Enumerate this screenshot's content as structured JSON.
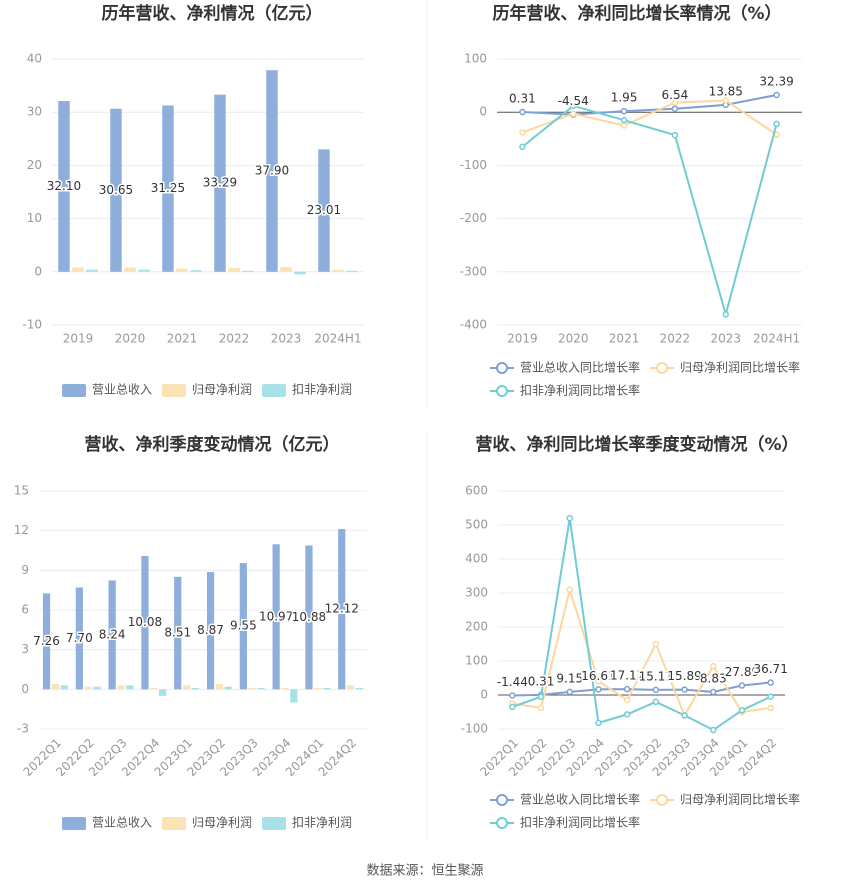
{
  "chart_data": [
    {
      "type": "bar",
      "title": "历年营收、净利情况（亿元）",
      "categories": [
        "2019",
        "2020",
        "2021",
        "2022",
        "2023",
        "2024H1"
      ],
      "series": [
        {
          "name": "营业总收入",
          "color": "#8eaedc",
          "values": [
            32.1,
            30.65,
            31.25,
            33.29,
            37.9,
            23.01
          ],
          "value_labels": [
            "32.10",
            "30.65",
            "31.25",
            "33.29",
            "37.90",
            "23.01"
          ]
        },
        {
          "name": "归母净利润",
          "color": "#fbe3b6",
          "values": [
            0.8,
            0.8,
            0.6,
            0.7,
            0.9,
            0.4
          ]
        },
        {
          "name": "扣非净利润",
          "color": "#a8e2e8",
          "values": [
            0.4,
            0.4,
            0.3,
            0.2,
            -0.5,
            0.2
          ]
        }
      ],
      "ylim": [
        -10,
        40
      ],
      "yticks": [
        -10,
        0,
        10,
        20,
        30,
        40
      ],
      "grid": true,
      "legend": "bottom"
    },
    {
      "type": "line",
      "title": "历年营收、净利同比增长率情况（%）",
      "categories": [
        "2019",
        "2020",
        "2021",
        "2022",
        "2023",
        "2024H1"
      ],
      "series": [
        {
          "name": "营业总收入同比增长率",
          "color": "#7f9fd2",
          "values": [
            0.31,
            -4.54,
            1.95,
            6.54,
            13.85,
            32.39
          ],
          "labels": true
        },
        {
          "name": "归母净利润同比增长率",
          "color": "#fcd89c",
          "values": [
            -38,
            -3,
            -25,
            18,
            22,
            -42
          ]
        },
        {
          "name": "扣非净利润同比增长率",
          "color": "#70ccd4",
          "values": [
            -65,
            12,
            -15,
            -43,
            -380,
            -22
          ]
        }
      ],
      "ylim": [
        -400,
        100
      ],
      "yticks": [
        -400,
        -300,
        -200,
        -100,
        0,
        100
      ],
      "grid": true,
      "legend": "bottom"
    },
    {
      "type": "bar",
      "title": "营收、净利季度变动情况（亿元）",
      "categories": [
        "2022Q1",
        "2022Q2",
        "2022Q3",
        "2022Q4",
        "2023Q1",
        "2023Q2",
        "2023Q3",
        "2023Q4",
        "2024Q1",
        "2024Q2"
      ],
      "series": [
        {
          "name": "营业总收入",
          "color": "#8eaedc",
          "values": [
            7.26,
            7.7,
            8.24,
            10.08,
            8.51,
            8.87,
            9.55,
            10.97,
            10.88,
            12.12
          ],
          "value_labels": [
            "7.26",
            "7.70",
            "8.24",
            "10.08",
            "8.51",
            "8.87",
            "9.55",
            "10.97",
            "10.88",
            "12.12"
          ]
        },
        {
          "name": "归母净利润",
          "color": "#fbe3b6",
          "values": [
            0.4,
            0.2,
            0.3,
            0.1,
            0.3,
            0.4,
            0.1,
            0.1,
            0.1,
            0.3
          ]
        },
        {
          "name": "扣非净利润",
          "color": "#a8e2e8",
          "values": [
            0.3,
            0.2,
            0.3,
            -0.5,
            0.1,
            0.2,
            0.1,
            -1.0,
            0.1,
            0.1
          ]
        }
      ],
      "ylim": [
        -3,
        15
      ],
      "yticks": [
        -3,
        0,
        3,
        6,
        9,
        12,
        15
      ],
      "grid": true,
      "legend": "bottom"
    },
    {
      "type": "line",
      "title": "营收、净利同比增长率季度变动情况（%）",
      "categories": [
        "2022Q1",
        "2022Q2",
        "2022Q3",
        "2022Q4",
        "2023Q1",
        "2023Q2",
        "2023Q3",
        "2023Q4",
        "2024Q1",
        "2024Q2"
      ],
      "series": [
        {
          "name": "营业总收入同比增长率",
          "color": "#7f9fd2",
          "values": [
            -1.44,
            0.31,
            9.15,
            16.61,
            17.17,
            15.11,
            15.89,
            8.83,
            27.89,
            36.71
          ],
          "labels": true
        },
        {
          "name": "归母净利润同比增长率",
          "color": "#fcd89c",
          "values": [
            -25,
            -38,
            310,
            40,
            -15,
            150,
            -60,
            85,
            -50,
            -38
          ]
        },
        {
          "name": "扣非净利润同比增长率",
          "color": "#70ccd4",
          "values": [
            -35,
            -5,
            520,
            -82,
            -57,
            -20,
            -60,
            -103,
            -45,
            -5
          ]
        }
      ],
      "ylim": [
        -100,
        600
      ],
      "yticks": [
        -100,
        0,
        100,
        200,
        300,
        400,
        500,
        600
      ],
      "grid": true,
      "legend": "bottom"
    }
  ],
  "source": "数据来源：恒生聚源"
}
